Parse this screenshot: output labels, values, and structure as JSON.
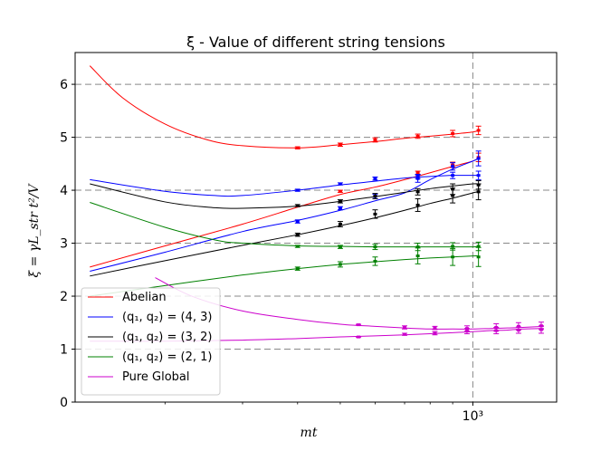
{
  "chart_data": {
    "type": "line",
    "title": "ξ - Value of different string tensions",
    "xlabel": "mt",
    "ylabel": "ξ = γL_str t²/V",
    "xscale": "log",
    "xlim": [
      125,
      1550
    ],
    "ylim": [
      0,
      6.6
    ],
    "yticks": [
      0,
      1,
      2,
      3,
      4,
      5,
      6
    ],
    "xticks": [
      {
        "value": 1000,
        "label": "10³"
      }
    ],
    "grid": "horizontal dashed + vertical dashed at 1000",
    "legend_position": "lower-left",
    "series": [
      {
        "name": "Abelian",
        "color": "#ff0000",
        "curves": [
          {
            "x": [
              135,
              160,
              200,
              250,
              300,
              400,
              500,
              600,
              700,
              800,
              900,
              1000,
              1030
            ],
            "y": [
              6.35,
              5.75,
              5.25,
              4.95,
              4.84,
              4.8,
              4.86,
              4.92,
              4.98,
              5.02,
              5.06,
              5.1,
              5.13
            ]
          },
          {
            "x": [
              135,
              200,
              300,
              400,
              500,
              600,
              700,
              800,
              900,
              1000,
              1030
            ],
            "y": [
              2.55,
              2.95,
              3.36,
              3.68,
              3.92,
              4.06,
              4.2,
              4.33,
              4.45,
              4.55,
              4.62
            ]
          }
        ],
        "points": [
          {
            "x": 400,
            "y": 4.8,
            "err": 0.02
          },
          {
            "x": 500,
            "y": 4.86,
            "err": 0.03
          },
          {
            "x": 600,
            "y": 4.95,
            "err": 0.04
          },
          {
            "x": 750,
            "y": 5.02,
            "err": 0.04
          },
          {
            "x": 900,
            "y": 5.07,
            "err": 0.06
          },
          {
            "x": 1030,
            "y": 5.13,
            "err": 0.08
          },
          {
            "x": 500,
            "y": 3.98,
            "err": 0.02
          },
          {
            "x": 750,
            "y": 4.33,
            "err": 0.03
          },
          {
            "x": 900,
            "y": 4.48,
            "err": 0.05
          },
          {
            "x": 1030,
            "y": 4.62,
            "err": 0.08
          }
        ]
      },
      {
        "name": "(q₁, q₂) = (4, 3)",
        "color": "#0000ff",
        "curves": [
          {
            "x": [
              135,
              200,
              260,
              300,
              400,
              500,
              600,
              700,
              800,
              900,
              1000,
              1030
            ],
            "y": [
              4.2,
              3.98,
              3.9,
              3.9,
              4.0,
              4.1,
              4.17,
              4.23,
              4.26,
              4.28,
              4.28,
              4.28
            ]
          },
          {
            "x": [
              135,
              200,
              300,
              400,
              500,
              600,
              700,
              800,
              900,
              1000,
              1030
            ],
            "y": [
              2.47,
              2.83,
              3.22,
              3.43,
              3.62,
              3.8,
              3.95,
              4.2,
              4.4,
              4.55,
              4.6
            ]
          }
        ],
        "points": [
          {
            "x": 400,
            "y": 4.0,
            "err": 0.02
          },
          {
            "x": 500,
            "y": 4.12,
            "err": 0.02
          },
          {
            "x": 600,
            "y": 4.22,
            "err": 0.03
          },
          {
            "x": 750,
            "y": 4.26,
            "err": 0.04
          },
          {
            "x": 900,
            "y": 4.28,
            "err": 0.06
          },
          {
            "x": 1030,
            "y": 4.28,
            "err": 0.08
          },
          {
            "x": 400,
            "y": 3.41,
            "err": 0.03
          },
          {
            "x": 500,
            "y": 3.66,
            "err": 0.03
          },
          {
            "x": 600,
            "y": 3.88,
            "err": 0.04
          },
          {
            "x": 750,
            "y": 4.22,
            "err": 0.07
          },
          {
            "x": 900,
            "y": 4.45,
            "err": 0.07
          },
          {
            "x": 1030,
            "y": 4.6,
            "err": 0.14
          }
        ]
      },
      {
        "name": "(q₁, q₂) = (3, 2)",
        "color": "#000000",
        "curves": [
          {
            "x": [
              135,
              200,
              260,
              300,
              400,
              500,
              600,
              700,
              800,
              900,
              1000,
              1030
            ],
            "y": [
              4.12,
              3.78,
              3.67,
              3.66,
              3.7,
              3.79,
              3.88,
              3.96,
              4.03,
              4.08,
              4.12,
              4.12
            ]
          },
          {
            "x": [
              135,
              200,
              300,
              400,
              500,
              600,
              700,
              800,
              900,
              1000,
              1030
            ],
            "y": [
              2.38,
              2.67,
              2.96,
              3.16,
              3.33,
              3.48,
              3.62,
              3.75,
              3.85,
              3.95,
              3.97
            ]
          }
        ],
        "points": [
          {
            "x": 400,
            "y": 3.71,
            "err": 0.02
          },
          {
            "x": 500,
            "y": 3.79,
            "err": 0.03
          },
          {
            "x": 600,
            "y": 3.89,
            "err": 0.05
          },
          {
            "x": 750,
            "y": 3.97,
            "err": 0.06
          },
          {
            "x": 900,
            "y": 4.02,
            "err": 0.1
          },
          {
            "x": 1030,
            "y": 4.1,
            "err": 0.08
          },
          {
            "x": 400,
            "y": 3.16,
            "err": 0.03
          },
          {
            "x": 500,
            "y": 3.36,
            "err": 0.05
          },
          {
            "x": 600,
            "y": 3.55,
            "err": 0.08
          },
          {
            "x": 750,
            "y": 3.72,
            "err": 0.12
          },
          {
            "x": 900,
            "y": 3.9,
            "err": 0.14
          },
          {
            "x": 1030,
            "y": 3.97,
            "err": 0.15
          }
        ]
      },
      {
        "name": "(q₁, q₂) = (2, 1)",
        "color": "#008000",
        "curves": [
          {
            "x": [
              135,
              200,
              260,
              300,
              400,
              500,
              600,
              700,
              800,
              900,
              1000,
              1030
            ],
            "y": [
              3.77,
              3.3,
              3.06,
              3.0,
              2.95,
              2.94,
              2.93,
              2.93,
              2.93,
              2.93,
              2.93,
              2.94
            ]
          },
          {
            "x": [
              135,
              200,
              300,
              400,
              500,
              600,
              700,
              800,
              900,
              1000,
              1030
            ],
            "y": [
              2.0,
              2.2,
              2.4,
              2.52,
              2.6,
              2.65,
              2.69,
              2.72,
              2.74,
              2.76,
              2.76
            ]
          }
        ],
        "points": [
          {
            "x": 400,
            "y": 2.94,
            "err": 0.02
          },
          {
            "x": 500,
            "y": 2.93,
            "err": 0.03
          },
          {
            "x": 600,
            "y": 2.93,
            "err": 0.05
          },
          {
            "x": 750,
            "y": 2.93,
            "err": 0.07
          },
          {
            "x": 900,
            "y": 2.94,
            "err": 0.07
          },
          {
            "x": 1030,
            "y": 2.94,
            "err": 0.08
          },
          {
            "x": 400,
            "y": 2.52,
            "err": 0.03
          },
          {
            "x": 500,
            "y": 2.6,
            "err": 0.05
          },
          {
            "x": 600,
            "y": 2.66,
            "err": 0.08
          },
          {
            "x": 750,
            "y": 2.76,
            "err": 0.15
          },
          {
            "x": 900,
            "y": 2.74,
            "err": 0.16
          },
          {
            "x": 1030,
            "y": 2.74,
            "err": 0.18
          }
        ]
      },
      {
        "name": "Pure Global",
        "color": "#cc00cc",
        "curves": [
          {
            "x": [
              190,
              230,
              300,
              400,
              500,
              600,
              700,
              800,
              900,
              1000,
              1100,
              1200,
              1300,
              1450
            ],
            "y": [
              2.35,
              2.0,
              1.72,
              1.56,
              1.47,
              1.43,
              1.4,
              1.38,
              1.38,
              1.38,
              1.39,
              1.4,
              1.41,
              1.43
            ]
          },
          {
            "x": [
              135,
              200,
              300,
              400,
              500,
              600,
              700,
              800,
              900,
              1000,
              1100,
              1200,
              1300,
              1450
            ],
            "y": [
              1.15,
              1.15,
              1.17,
              1.2,
              1.23,
              1.25,
              1.27,
              1.29,
              1.31,
              1.33,
              1.35,
              1.36,
              1.38,
              1.39
            ]
          }
        ],
        "points": [
          {
            "x": 550,
            "y": 1.46,
            "err": 0.01
          },
          {
            "x": 700,
            "y": 1.41,
            "err": 0.03
          },
          {
            "x": 820,
            "y": 1.4,
            "err": 0.03
          },
          {
            "x": 970,
            "y": 1.39,
            "err": 0.05
          },
          {
            "x": 1130,
            "y": 1.41,
            "err": 0.07
          },
          {
            "x": 1270,
            "y": 1.43,
            "err": 0.07
          },
          {
            "x": 1430,
            "y": 1.44,
            "err": 0.07
          },
          {
            "x": 550,
            "y": 1.23,
            "err": 0.01
          },
          {
            "x": 700,
            "y": 1.28,
            "err": 0.02
          },
          {
            "x": 820,
            "y": 1.3,
            "err": 0.03
          },
          {
            "x": 970,
            "y": 1.34,
            "err": 0.05
          },
          {
            "x": 1130,
            "y": 1.35,
            "err": 0.06
          },
          {
            "x": 1270,
            "y": 1.36,
            "err": 0.06
          },
          {
            "x": 1430,
            "y": 1.37,
            "err": 0.07
          }
        ]
      }
    ]
  }
}
